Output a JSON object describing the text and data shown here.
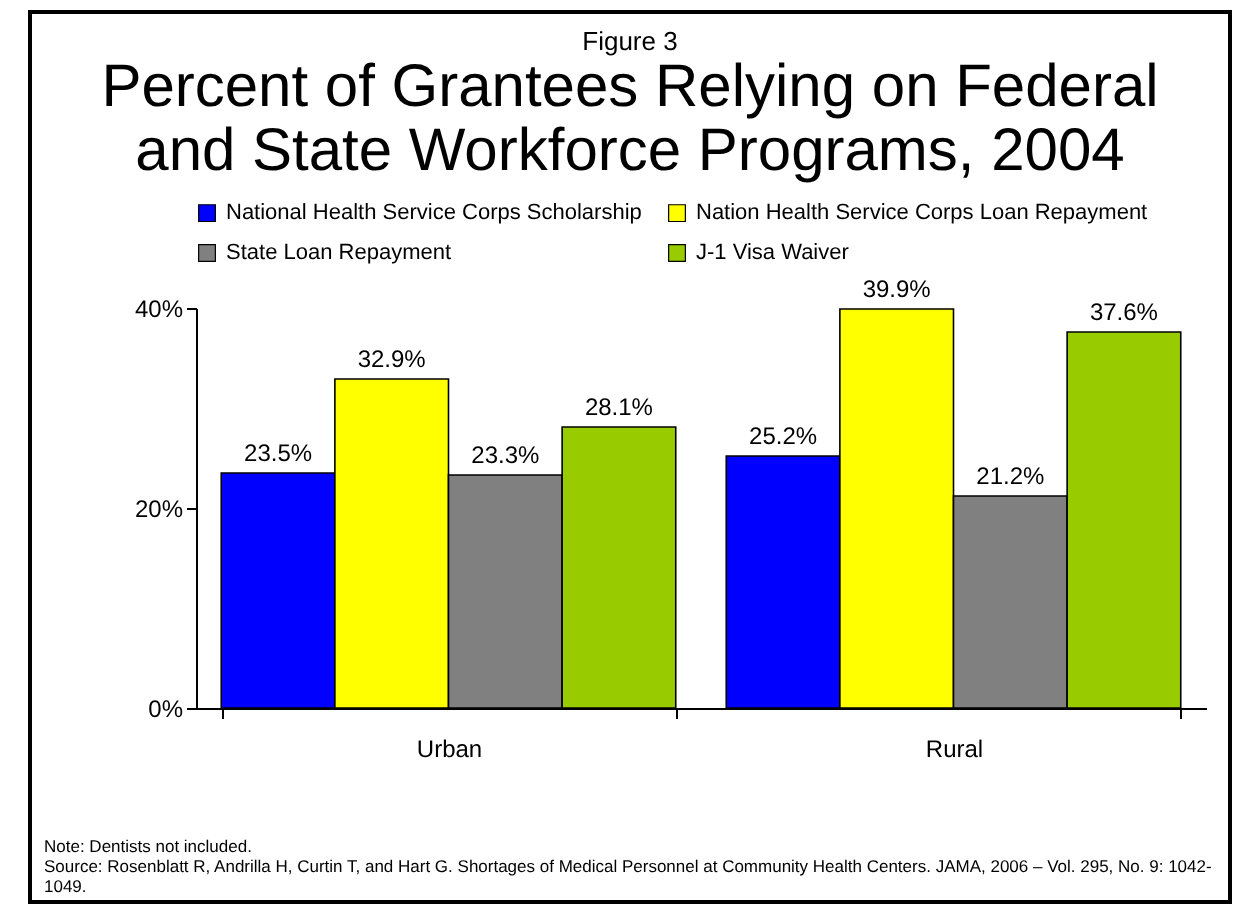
{
  "chart_data": {
    "type": "bar",
    "subtitle": "Figure 3",
    "title": "Percent of Grantees Relying on Federal and State Workforce Programs, 2004",
    "categories": [
      "Urban",
      "Rural"
    ],
    "series": [
      {
        "name": "National Health Service Corps Scholarship",
        "color": "#0000ff",
        "values": [
          23.5,
          25.2
        ],
        "value_labels": [
          "23.5%",
          "25.2%"
        ]
      },
      {
        "name": "Nation Health Service Corps Loan Repayment",
        "color": "#ffff00",
        "values": [
          32.9,
          39.9
        ],
        "value_labels": [
          "32.9%",
          "39.9%"
        ]
      },
      {
        "name": "State Loan Repayment",
        "color": "#808080",
        "values": [
          23.3,
          21.2
        ],
        "value_labels": [
          "23.3%",
          "21.2%"
        ]
      },
      {
        "name": "J-1 Visa Waiver",
        "color": "#99cc00",
        "values": [
          28.1,
          37.6
        ],
        "value_labels": [
          "28.1%",
          "37.6%"
        ]
      }
    ],
    "ylim": [
      0,
      40
    ],
    "yticks": [
      {
        "value": 0,
        "label": "0%"
      },
      {
        "value": 20,
        "label": "20%"
      },
      {
        "value": 40,
        "label": "40%"
      }
    ],
    "grid": false,
    "legend": "top",
    "annotations": [
      "Note: Dentists not included.",
      "Source: Rosenblatt R, Andrilla H, Curtin T, and Hart G. Shortages of Medical Personnel at Community Health Centers. JAMA, 2006 – Vol. 295, No. 9: 1042-1049."
    ]
  }
}
